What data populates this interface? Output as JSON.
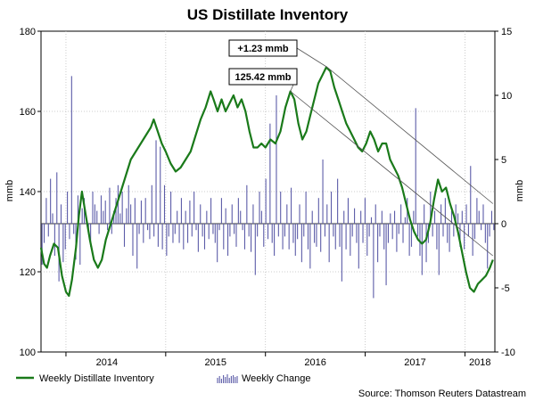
{
  "chart_data": {
    "type": "line",
    "title": "US Distillate Inventory",
    "ylabel_left": "mmb",
    "ylabel_right": "mmb",
    "left_ylim": [
      100,
      180
    ],
    "left_ticks": [
      "100",
      "120",
      "140",
      "160",
      "180"
    ],
    "right_ylim": [
      -10,
      15
    ],
    "right_ticks": [
      "-10",
      "-5",
      "0",
      "5",
      "10",
      "15"
    ],
    "x_labels": [
      "2014",
      "2015",
      "2016",
      "2017",
      "2018"
    ],
    "x_range": [
      2013.75,
      2018.3
    ],
    "grid": true,
    "series": [
      {
        "name": "Weekly Distillate Inventory",
        "axis": "left",
        "color": "#1a7a1a",
        "points": [
          [
            2013.75,
            126
          ],
          [
            2013.78,
            122
          ],
          [
            2013.81,
            121
          ],
          [
            2013.84,
            124
          ],
          [
            2013.88,
            127
          ],
          [
            2013.92,
            126
          ],
          [
            2013.96,
            119
          ],
          [
            2014.0,
            115
          ],
          [
            2014.03,
            114
          ],
          [
            2014.06,
            118
          ],
          [
            2014.1,
            126
          ],
          [
            2014.13,
            134
          ],
          [
            2014.16,
            140
          ],
          [
            2014.2,
            134
          ],
          [
            2014.24,
            128
          ],
          [
            2014.28,
            123
          ],
          [
            2014.32,
            121
          ],
          [
            2014.36,
            123
          ],
          [
            2014.4,
            128
          ],
          [
            2014.45,
            132
          ],
          [
            2014.5,
            136
          ],
          [
            2014.55,
            140
          ],
          [
            2014.6,
            144
          ],
          [
            2014.65,
            148
          ],
          [
            2014.7,
            150
          ],
          [
            2014.75,
            152
          ],
          [
            2014.8,
            154
          ],
          [
            2014.85,
            156
          ],
          [
            2014.88,
            158
          ],
          [
            2014.92,
            155
          ],
          [
            2014.96,
            152
          ],
          [
            2015.0,
            150
          ],
          [
            2015.05,
            147
          ],
          [
            2015.1,
            145
          ],
          [
            2015.15,
            146
          ],
          [
            2015.2,
            148
          ],
          [
            2015.25,
            150
          ],
          [
            2015.3,
            154
          ],
          [
            2015.35,
            158
          ],
          [
            2015.4,
            161
          ],
          [
            2015.45,
            165
          ],
          [
            2015.48,
            163
          ],
          [
            2015.52,
            160
          ],
          [
            2015.56,
            163
          ],
          [
            2015.6,
            160
          ],
          [
            2015.64,
            162
          ],
          [
            2015.68,
            164
          ],
          [
            2015.72,
            161
          ],
          [
            2015.76,
            163
          ],
          [
            2015.8,
            160
          ],
          [
            2015.84,
            155
          ],
          [
            2015.88,
            151
          ],
          [
            2015.92,
            151
          ],
          [
            2015.96,
            152
          ],
          [
            2016.0,
            151
          ],
          [
            2016.05,
            153
          ],
          [
            2016.1,
            152
          ],
          [
            2016.15,
            155
          ],
          [
            2016.2,
            161
          ],
          [
            2016.25,
            165
          ],
          [
            2016.29,
            163
          ],
          [
            2016.33,
            157
          ],
          [
            2016.37,
            153
          ],
          [
            2016.41,
            155
          ],
          [
            2016.45,
            159
          ],
          [
            2016.49,
            163
          ],
          [
            2016.53,
            167
          ],
          [
            2016.57,
            169
          ],
          [
            2016.61,
            171
          ],
          [
            2016.65,
            170
          ],
          [
            2016.69,
            166
          ],
          [
            2016.73,
            163
          ],
          [
            2016.77,
            160
          ],
          [
            2016.81,
            157
          ],
          [
            2016.85,
            155
          ],
          [
            2016.89,
            153
          ],
          [
            2016.93,
            151
          ],
          [
            2016.97,
            150
          ],
          [
            2017.01,
            152
          ],
          [
            2017.05,
            155
          ],
          [
            2017.09,
            153
          ],
          [
            2017.13,
            150
          ],
          [
            2017.17,
            152
          ],
          [
            2017.21,
            152
          ],
          [
            2017.25,
            148
          ],
          [
            2017.29,
            146
          ],
          [
            2017.33,
            144
          ],
          [
            2017.37,
            141
          ],
          [
            2017.41,
            137
          ],
          [
            2017.45,
            133
          ],
          [
            2017.49,
            130
          ],
          [
            2017.53,
            128
          ],
          [
            2017.57,
            127
          ],
          [
            2017.61,
            128
          ],
          [
            2017.65,
            132
          ],
          [
            2017.69,
            138
          ],
          [
            2017.73,
            143
          ],
          [
            2017.77,
            140
          ],
          [
            2017.81,
            141
          ],
          [
            2017.85,
            137
          ],
          [
            2017.89,
            134
          ],
          [
            2017.93,
            130
          ],
          [
            2017.97,
            125
          ],
          [
            2018.01,
            120
          ],
          [
            2018.05,
            116
          ],
          [
            2018.09,
            115
          ],
          [
            2018.13,
            117
          ],
          [
            2018.17,
            118
          ],
          [
            2018.21,
            119
          ],
          [
            2018.25,
            121
          ],
          [
            2018.28,
            123
          ]
        ]
      },
      {
        "name": "Weekly Change",
        "axis": "right",
        "color": "#5c5ca8",
        "values": [
          -3.2,
          -1.5,
          2.0,
          -1.0,
          3.5,
          0.8,
          -2.5,
          4.0,
          -4.5,
          1.5,
          -3.0,
          -2.0,
          2.5,
          -1.2,
          11.5,
          -0.8,
          -2.8,
          2.2,
          -3.2,
          1.2,
          2.0,
          0.5,
          -0.5,
          -1.8,
          2.5,
          1.5,
          1.0,
          -0.8,
          2.2,
          1.0,
          1.8,
          -0.5,
          2.8,
          -0.8,
          1.0,
          2.0,
          3.0,
          0.8,
          2.5,
          -1.8,
          1.2,
          3.0,
          1.5,
          -2.5,
          2.0,
          -3.5,
          -0.8,
          1.8,
          -1.5,
          2.0,
          -0.5,
          -1.2,
          3.0,
          -1.0,
          6.5,
          -1.8,
          6.0,
          -2.0,
          3.0,
          -2.5,
          -1.0,
          2.5,
          -1.5,
          -0.8,
          1.0,
          -1.5,
          2.0,
          -2.0,
          1.0,
          -1.5,
          1.8,
          -1.0,
          2.5,
          -0.5,
          -2.2,
          1.5,
          -1.0,
          -2.0,
          1.0,
          -1.2,
          2.0,
          -0.8,
          -1.5,
          -3.0,
          -0.5,
          2.0,
          -2.0,
          1.2,
          -2.5,
          -1.0,
          1.5,
          -0.8,
          -1.8,
          2.0,
          1.0,
          -0.5,
          -2.0,
          3.0,
          -1.0,
          -2.2,
          1.5,
          -4.0,
          -1.0,
          2.5,
          1.0,
          -1.8,
          3.5,
          -1.2,
          7.8,
          -1.5,
          -2.5,
          10.0,
          -1.0,
          2.5,
          -2.0,
          -1.0,
          1.5,
          -2.0,
          2.8,
          -1.5,
          -2.5,
          -1.2,
          1.5,
          -3.0,
          -1.0,
          2.5,
          -2.0,
          -3.5,
          1.0,
          -1.5,
          -1.8,
          2.0,
          -2.2,
          5.0,
          -1.0,
          1.5,
          -3.0,
          2.5,
          -1.0,
          -2.0,
          3.5,
          -1.8,
          -4.5,
          1.0,
          -2.0,
          2.0,
          -2.5,
          -1.0,
          1.2,
          -1.5,
          -3.5,
          1.0,
          -1.5,
          2.0,
          -2.5,
          -1.0,
          0.5,
          -5.8,
          1.5,
          -3.0,
          -1.0,
          1.0,
          -2.0,
          -4.8,
          -1.5,
          0.8,
          -1.2,
          1.0,
          -2.2,
          -0.8,
          1.5,
          -1.5,
          0.5,
          2.0,
          -2.5,
          -1.8,
          1.0,
          9.0,
          -1.0,
          -2.5,
          -4.0,
          1.5,
          -3.0,
          -1.5,
          2.5,
          -1.0,
          1.0,
          -2.0,
          -4.0,
          1.5,
          -1.0,
          2.0,
          -1.5,
          -2.2,
          1.0,
          -1.0,
          1.5,
          0.8,
          -1.8,
          1.0,
          -2.0,
          1.5,
          -1.0,
          4.5,
          -2.5,
          -1.2,
          2.0,
          1.0,
          -0.5,
          1.5,
          -1.5,
          -3.5,
          -1.0,
          1.0,
          -0.5
        ]
      }
    ],
    "annotations": [
      {
        "label": "+1.23 mmb",
        "x": 2016.27,
        "y": 171
      },
      {
        "label": "125.42 mmb",
        "x": 2016.23,
        "y": 165
      }
    ],
    "trendlines": [
      {
        "from": [
          2016.62,
          171
        ],
        "to": [
          2018.28,
          137
        ]
      },
      {
        "from": [
          2016.25,
          165
        ],
        "to": [
          2018.28,
          124
        ]
      }
    ],
    "legend_position": "bottom-left",
    "source": "Source: Thomson Reuters Datastream"
  }
}
